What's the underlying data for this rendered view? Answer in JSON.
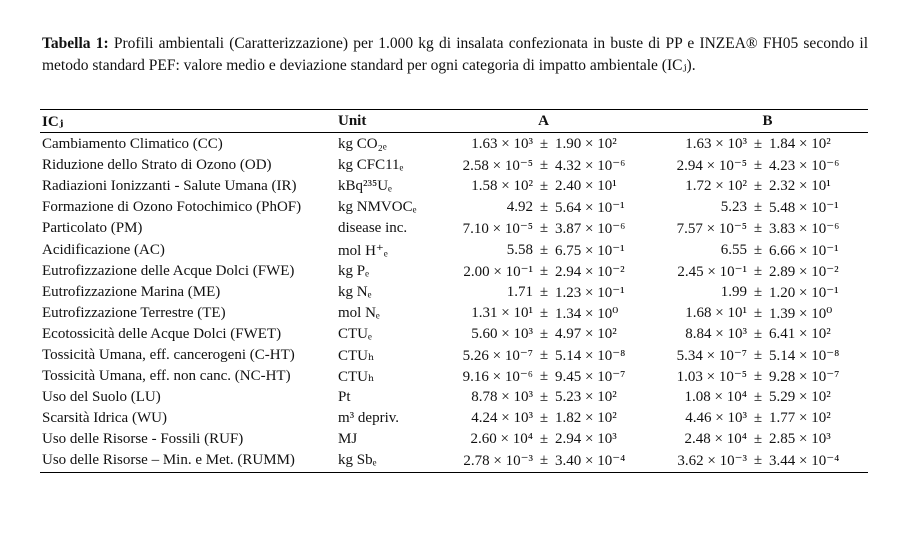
{
  "caption": {
    "label": "Tabella 1:",
    "text": "Profili ambientali (Caratterizzazione) per 1.000 kg di insalata confezionata in buste di PP e INZEA® FH05 secondo il metodo standard PEF: valore medio e deviazione standard per ogni categoria di impatto ambientale (ICⱼ)."
  },
  "table": {
    "headers": {
      "category": "ICⱼ",
      "unit": "Unit",
      "a": "A",
      "b": "B"
    },
    "pm": "±",
    "rows": [
      {
        "category": "Cambiamento Climatico (CC)",
        "unit": "kg CO₂ₑ",
        "a_mean": "1.63 × 10³",
        "a_sd": "1.90 × 10²",
        "b_mean": "1.63 × 10³",
        "b_sd": "1.84 × 10²"
      },
      {
        "category": "Riduzione dello Strato di Ozono (OD)",
        "unit": "kg CFC11ₑ",
        "a_mean": "2.58 × 10⁻⁵",
        "a_sd": "4.32 × 10⁻⁶",
        "b_mean": "2.94 × 10⁻⁵",
        "b_sd": "4.23 × 10⁻⁶"
      },
      {
        "category": "Radiazioni Ionizzanti - Salute Umana (IR)",
        "unit": "kBq²³⁵Uₑ",
        "a_mean": "1.58 × 10²",
        "a_sd": "2.40 × 10¹",
        "b_mean": "1.72 × 10²",
        "b_sd": "2.32 × 10¹"
      },
      {
        "category": "Formazione di Ozono Fotochimico (PhOF)",
        "unit": "kg NMVOCₑ",
        "a_mean": "4.92",
        "a_sd": "5.64 × 10⁻¹",
        "b_mean": "5.23",
        "b_sd": "5.48 × 10⁻¹"
      },
      {
        "category": "Particolato (PM)",
        "unit": "disease inc.",
        "a_mean": "7.10 × 10⁻⁵",
        "a_sd": "3.87 × 10⁻⁶",
        "b_mean": "7.57 × 10⁻⁵",
        "b_sd": "3.83 × 10⁻⁶"
      },
      {
        "category": "Acidificazione (AC)",
        "unit": "mol H⁺ₑ",
        "a_mean": "5.58",
        "a_sd": "6.75 × 10⁻¹",
        "b_mean": "6.55",
        "b_sd": "6.66 × 10⁻¹"
      },
      {
        "category": "Eutrofizzazione delle Acque Dolci (FWE)",
        "unit": "kg Pₑ",
        "a_mean": "2.00 × 10⁻¹",
        "a_sd": "2.94 × 10⁻²",
        "b_mean": "2.45 × 10⁻¹",
        "b_sd": "2.89 × 10⁻²"
      },
      {
        "category": "Eutrofizzazione Marina (ME)",
        "unit": "kg Nₑ",
        "a_mean": "1.71",
        "a_sd": "1.23 × 10⁻¹",
        "b_mean": "1.99",
        "b_sd": "1.20 × 10⁻¹"
      },
      {
        "category": "Eutrofizzazione Terrestre (TE)",
        "unit": "mol Nₑ",
        "a_mean": "1.31 × 10¹",
        "a_sd": "1.34 × 10⁰",
        "b_mean": "1.68 × 10¹",
        "b_sd": "1.39 × 10⁰"
      },
      {
        "category": "Ecotossicità delle Acque Dolci (FWET)",
        "unit": "CTUₑ",
        "a_mean": "5.60 × 10³",
        "a_sd": "4.97 × 10²",
        "b_mean": "8.84 × 10³",
        "b_sd": "6.41 × 10²"
      },
      {
        "category": "Tossicità Umana, eff. cancerogeni (C-HT)",
        "unit": "CTUₕ",
        "a_mean": "5.26 × 10⁻⁷",
        "a_sd": "5.14 × 10⁻⁸",
        "b_mean": "5.34 × 10⁻⁷",
        "b_sd": "5.14 × 10⁻⁸"
      },
      {
        "category": "Tossicità Umana, eff. non canc. (NC-HT)",
        "unit": "CTUₕ",
        "a_mean": "9.16 × 10⁻⁶",
        "a_sd": "9.45 × 10⁻⁷",
        "b_mean": "1.03 × 10⁻⁵",
        "b_sd": "9.28 × 10⁻⁷"
      },
      {
        "category": "Uso del Suolo (LU)",
        "unit": "Pt",
        "a_mean": "8.78 × 10³",
        "a_sd": "5.23 × 10²",
        "b_mean": "1.08 × 10⁴",
        "b_sd": "5.29 × 10²"
      },
      {
        "category": "Scarsità Idrica (WU)",
        "unit": "m³ depriv.",
        "a_mean": "4.24 × 10³",
        "a_sd": "1.82 × 10²",
        "b_mean": "4.46 × 10³",
        "b_sd": "1.77 × 10²"
      },
      {
        "category": "Uso delle Risorse - Fossili (RUF)",
        "unit": "MJ",
        "a_mean": "2.60 × 10⁴",
        "a_sd": "2.94 × 10³",
        "b_mean": "2.48 × 10⁴",
        "b_sd": "2.85 × 10³"
      },
      {
        "category": "Uso delle Risorse – Min. e Met. (RUMM)",
        "unit": "kg Sbₑ",
        "a_mean": "2.78 × 10⁻³",
        "a_sd": "3.40 × 10⁻⁴",
        "b_mean": "3.62 × 10⁻³",
        "b_sd": "3.44 × 10⁻⁴"
      }
    ]
  }
}
